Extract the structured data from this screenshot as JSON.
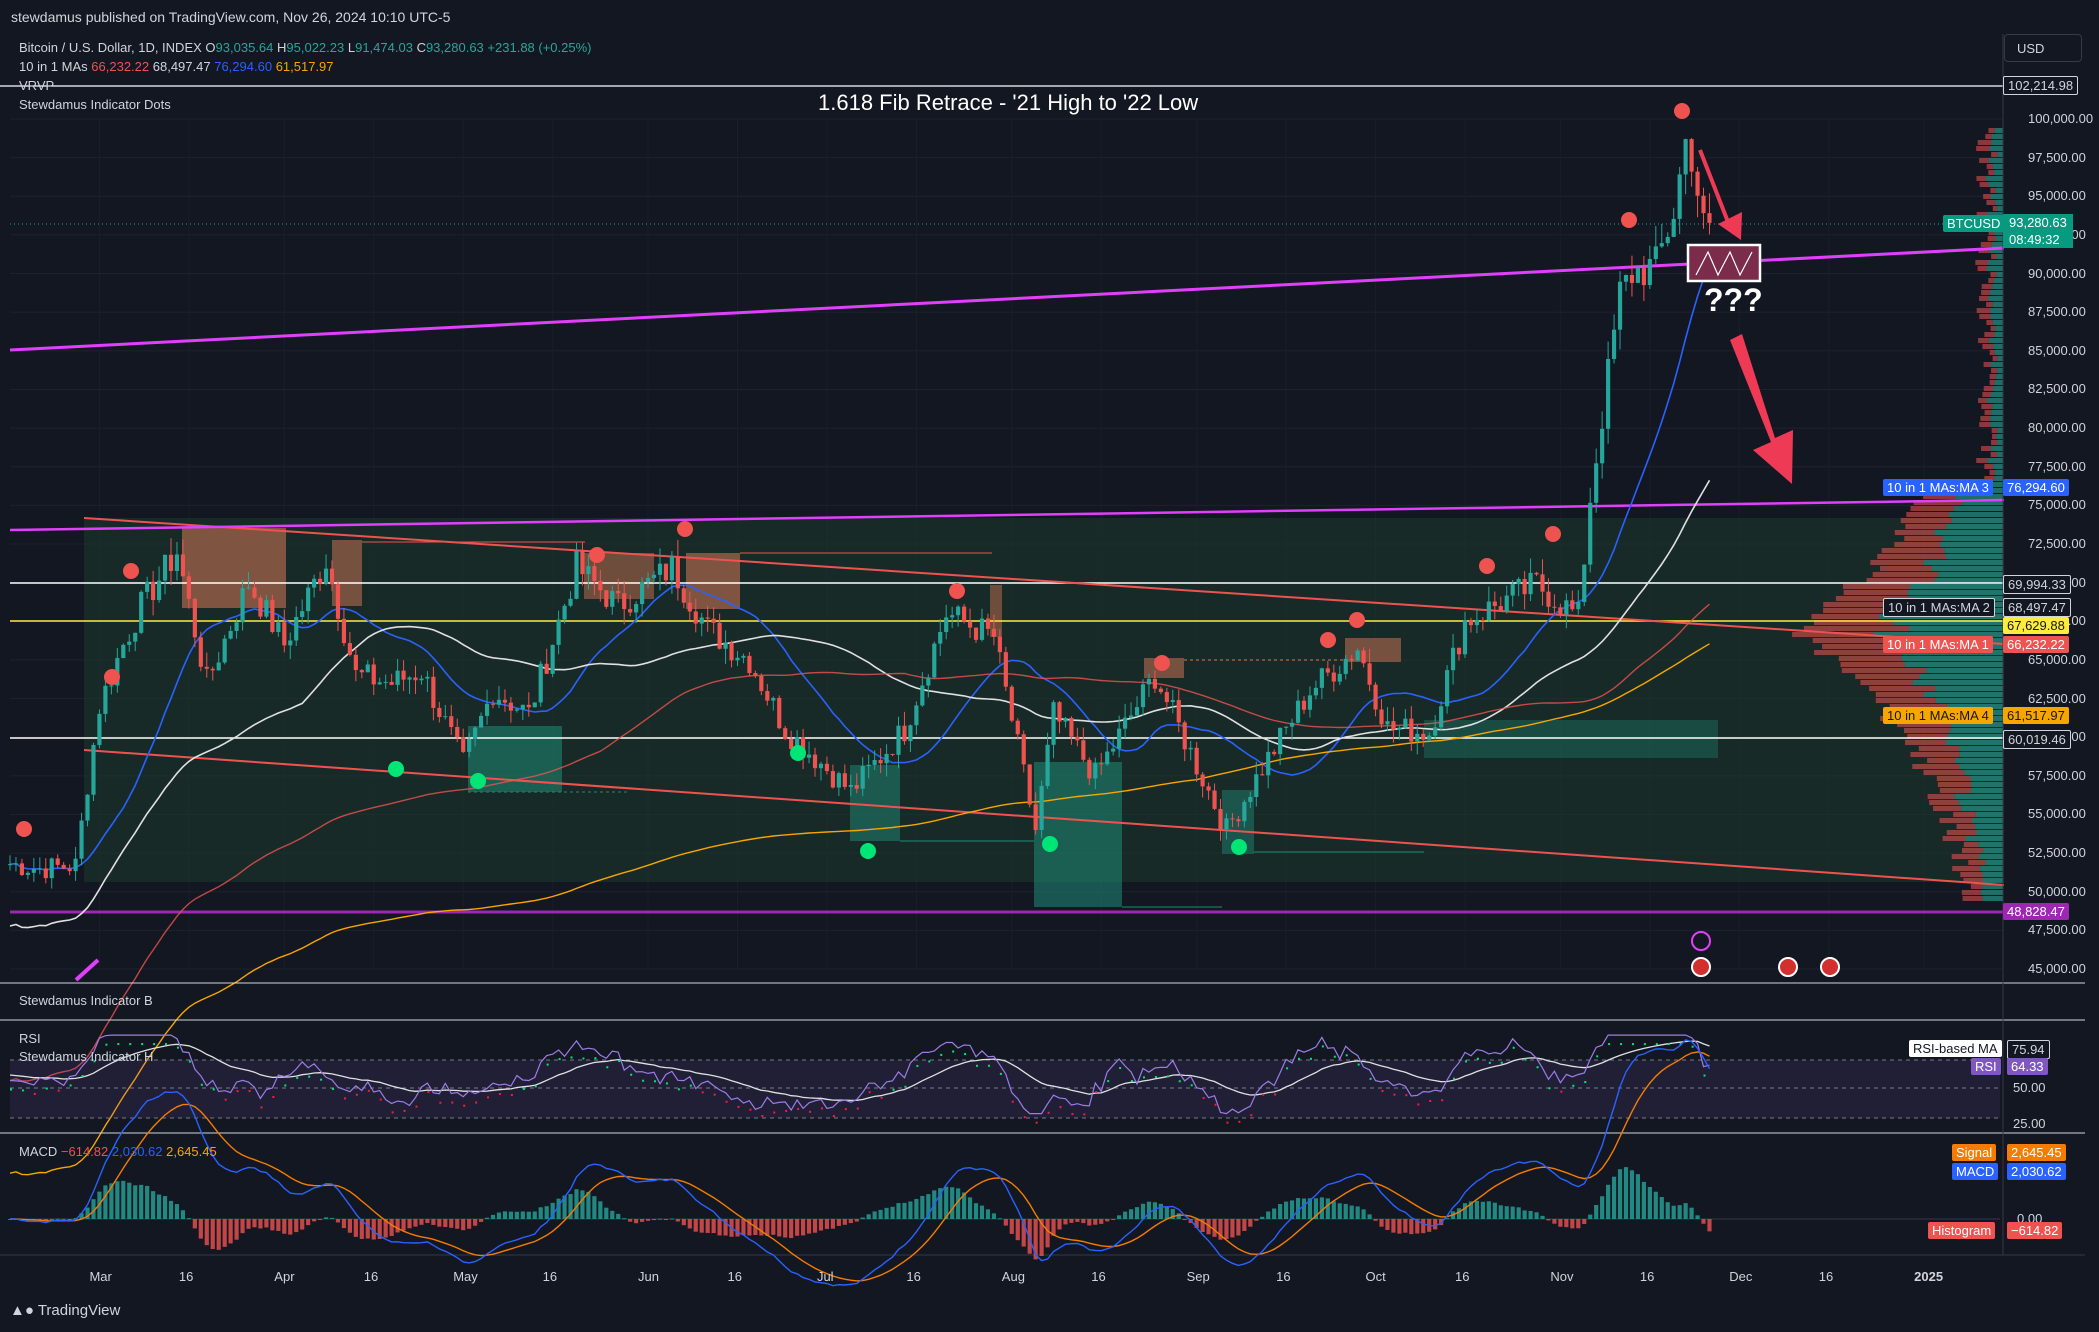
{
  "header": {
    "published": "stewdamus published on TradingView.com, Nov 26, 2024 10:10 UTC-5",
    "symbol_title": "Bitcoin / U.S. Dollar, 1D, INDEX",
    "ohlc": {
      "o_label": "O",
      "o": "93,035.64",
      "h_label": "H",
      "h": "95,022.23",
      "l_label": "L",
      "l": "91,474.03",
      "c_label": "C",
      "c": "93,280.63",
      "change": "+231.88 (+0.25%)"
    },
    "ma_legend": {
      "label": "10 in 1 MAs",
      "v1": "66,232.22",
      "v2": "68,497.47",
      "v3": "76,294.60",
      "v4": "61,517.97"
    },
    "vrvp_label": "VRVP",
    "dots_label": "Stewdamus Indicator Dots",
    "currency": "USD"
  },
  "annotations": {
    "title": "1.618 Fib Retrace - '21 High to '22 Low",
    "question": "???"
  },
  "price_axis": {
    "ticks": [
      "100,000.00",
      "97,500.00",
      "95,000.00",
      "92,500.00",
      "90,000.00",
      "87,500.00",
      "85,000.00",
      "82,500.00",
      "80,000.00",
      "77,500.00",
      "75,000.00",
      "72,500.00",
      "70,000.00",
      "67,500.00",
      "65,000.00",
      "62,500.00",
      "60,000.00",
      "57,500.00",
      "55,000.00",
      "52,500.00",
      "50,000.00",
      "47,500.00",
      "45,000.00"
    ],
    "tags": {
      "top": "102,214.98",
      "btcusd_label": "BTCUSD",
      "btcusd_price": "93,280.63",
      "countdown": "08:49:32",
      "ma3_label": "10 in 1 MAs:MA 3",
      "ma3_val": "76,294.60",
      "h1": "69,994.33",
      "ma2_label": "10 in 1 MAs:MA 2",
      "ma2_val": "68,497.47",
      "yellow": "67,629.88",
      "ma1_label": "10 in 1 MAs:MA 1",
      "ma1_val": "66,232.22",
      "ma4_label": "10 in 1 MAs:MA 4",
      "ma4_val": "61,517.97",
      "h2": "60,019.46",
      "purple": "48,828.47"
    }
  },
  "indicator_b": {
    "label": "Stewdamus Indicator B"
  },
  "rsi": {
    "label": "RSI",
    "sub_label": "Stewdamus Indicator H",
    "ma_label": "RSI-based MA",
    "ma_val": "75.94",
    "rsi_tag": "RSI",
    "rsi_val": "64.33",
    "ticks": [
      "50.00",
      "25.00"
    ]
  },
  "macd": {
    "label": "MACD",
    "v1": "−614.82",
    "v2": "2,030.62",
    "v3": "2,645.45",
    "signal_label": "Signal",
    "signal_val": "2,645.45",
    "macd_label": "MACD",
    "macd_val": "2,030.62",
    "zero": "0.00",
    "hist_label": "Histogram",
    "hist_val": "−614.82"
  },
  "time_axis": [
    "Mar",
    "16",
    "Apr",
    "16",
    "May",
    "16",
    "Jun",
    "16",
    "Jul",
    "16",
    "Aug",
    "16",
    "Sep",
    "16",
    "Oct",
    "16",
    "Nov",
    "16",
    "Dec",
    "16",
    "2025"
  ],
  "footer": {
    "brand": "TradingView"
  },
  "colors": {
    "bg": "#131722",
    "up": "#26a69a",
    "down": "#ef5350",
    "magenta": "#e040fb",
    "yellow": "#ffeb3b",
    "ma_blue": "#2962ff",
    "ma_orange": "#f7a600",
    "ma_red": "#ef5350"
  },
  "chart_data": {
    "type": "line",
    "title": "Bitcoin / U.S. Dollar, 1D, INDEX",
    "x_range": [
      "2024-02-15",
      "2025-01-05"
    ],
    "ylim": [
      44000,
      103500
    ],
    "log_scale": false,
    "price_path": [
      {
        "date": "2024-02-15",
        "close": 51800
      },
      {
        "date": "2024-02-20",
        "close": 51500
      },
      {
        "date": "2024-02-26",
        "close": 51700
      },
      {
        "date": "2024-02-28",
        "close": 57000
      },
      {
        "date": "2024-03-01",
        "close": 62000
      },
      {
        "date": "2024-03-05",
        "close": 66000
      },
      {
        "date": "2024-03-08",
        "close": 68500
      },
      {
        "date": "2024-03-14",
        "close": 72000
      },
      {
        "date": "2024-03-19",
        "close": 63500
      },
      {
        "date": "2024-03-26",
        "close": 70000
      },
      {
        "date": "2024-04-01",
        "close": 66000
      },
      {
        "date": "2024-04-08",
        "close": 71500
      },
      {
        "date": "2024-04-13",
        "close": 64000
      },
      {
        "date": "2024-04-19",
        "close": 63500
      },
      {
        "date": "2024-04-24",
        "close": 64300
      },
      {
        "date": "2024-05-01",
        "close": 58300
      },
      {
        "date": "2024-05-06",
        "close": 63000
      },
      {
        "date": "2024-05-12",
        "close": 61500
      },
      {
        "date": "2024-05-20",
        "close": 71000
      },
      {
        "date": "2024-05-27",
        "close": 68500
      },
      {
        "date": "2024-06-05",
        "close": 71000
      },
      {
        "date": "2024-06-11",
        "close": 67000
      },
      {
        "date": "2024-06-18",
        "close": 65000
      },
      {
        "date": "2024-06-24",
        "close": 60500
      },
      {
        "date": "2024-07-05",
        "close": 56500
      },
      {
        "date": "2024-07-14",
        "close": 60500
      },
      {
        "date": "2024-07-21",
        "close": 68000
      },
      {
        "date": "2024-07-29",
        "close": 66500
      },
      {
        "date": "2024-08-05",
        "close": 54000
      },
      {
        "date": "2024-08-08",
        "close": 61500
      },
      {
        "date": "2024-08-15",
        "close": 57500
      },
      {
        "date": "2024-08-25",
        "close": 64000
      },
      {
        "date": "2024-09-06",
        "close": 54000
      },
      {
        "date": "2024-09-12",
        "close": 58000
      },
      {
        "date": "2024-09-20",
        "close": 63000
      },
      {
        "date": "2024-09-28",
        "close": 65800
      },
      {
        "date": "2024-10-03",
        "close": 60600
      },
      {
        "date": "2024-10-10",
        "close": 60300
      },
      {
        "date": "2024-10-16",
        "close": 67500
      },
      {
        "date": "2024-10-28",
        "close": 69900
      },
      {
        "date": "2024-11-04",
        "close": 67800
      },
      {
        "date": "2024-11-06",
        "close": 75500
      },
      {
        "date": "2024-11-11",
        "close": 88700
      },
      {
        "date": "2024-11-13",
        "close": 90000
      },
      {
        "date": "2024-11-17",
        "close": 90500
      },
      {
        "date": "2024-11-20",
        "close": 94000
      },
      {
        "date": "2024-11-22",
        "close": 98500
      },
      {
        "date": "2024-11-23",
        "close": 97700
      },
      {
        "date": "2024-11-25",
        "close": 93000
      },
      {
        "date": "2024-11-26",
        "close": 93280.63
      }
    ],
    "horizontal_levels": [
      102214.98,
      69994.33,
      67629.88,
      60019.46,
      48828.47
    ],
    "moving_averages": [
      {
        "name": "10 in 1 MAs:MA 1",
        "value": 66232.22
      },
      {
        "name": "10 in 1 MAs:MA 2",
        "value": 68497.47
      },
      {
        "name": "10 in 1 MAs:MA 3",
        "value": 76294.6
      },
      {
        "name": "10 in 1 MAs:MA 4",
        "value": 61517.97
      }
    ]
  }
}
